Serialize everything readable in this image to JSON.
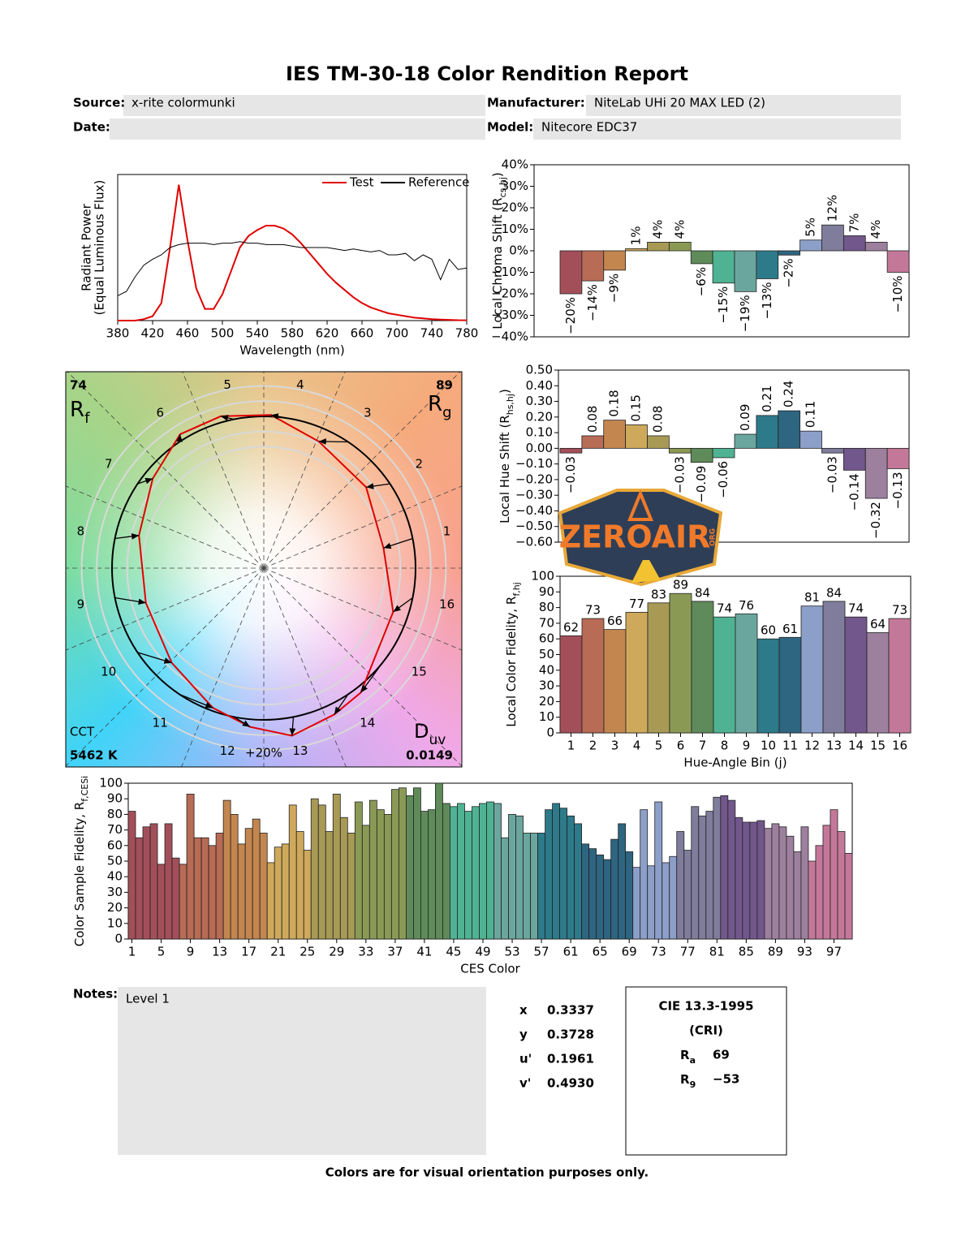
{
  "header": {
    "title": "IES TM-30-18 Color Rendition Report",
    "fields": [
      {
        "label": "Source:",
        "value": "x-rite colormunki"
      },
      {
        "label": "Manufacturer:",
        "value": "NiteLab UHi 20 MAX LED (2)"
      },
      {
        "label": "Date:"
      },
      {
        "label": "Model:",
        "value": "Nitecore EDC37"
      }
    ]
  },
  "chart_data": [
    {
      "type": "line",
      "ylabel": "Radiant Power",
      "ylabel_note": "(Equal Luminous Flux)",
      "xlabel": "Wavelength (nm)",
      "x": [
        380,
        390,
        400,
        410,
        420,
        430,
        440,
        450,
        460,
        470,
        480,
        490,
        500,
        510,
        520,
        530,
        540,
        550,
        560,
        570,
        580,
        590,
        600,
        610,
        620,
        630,
        640,
        650,
        660,
        670,
        680,
        690,
        700,
        710,
        720,
        730,
        740,
        750,
        760,
        770,
        780
      ],
      "xlim": [
        380,
        780
      ],
      "xticks": [
        380,
        420,
        460,
        500,
        540,
        580,
        620,
        660,
        700,
        740,
        780
      ],
      "ylim": [
        0,
        1
      ],
      "legend": "upper right",
      "series": [
        {
          "name": "Test",
          "color": "#e00000",
          "values": [
            0,
            0,
            0,
            0.01,
            0.03,
            0.12,
            0.5,
            0.93,
            0.55,
            0.22,
            0.08,
            0.08,
            0.18,
            0.34,
            0.5,
            0.58,
            0.62,
            0.65,
            0.65,
            0.63,
            0.59,
            0.53,
            0.46,
            0.39,
            0.32,
            0.26,
            0.21,
            0.16,
            0.12,
            0.09,
            0.07,
            0.05,
            0.04,
            0.03,
            0.02,
            0.015,
            0.01,
            0.007,
            0.005,
            0.003,
            0.002
          ]
        },
        {
          "name": "Reference",
          "color": "#000000",
          "values": [
            0.17,
            0.2,
            0.3,
            0.38,
            0.42,
            0.45,
            0.5,
            0.52,
            0.53,
            0.53,
            0.53,
            0.52,
            0.53,
            0.53,
            0.54,
            0.53,
            0.53,
            0.52,
            0.52,
            0.52,
            0.51,
            0.5,
            0.5,
            0.5,
            0.5,
            0.49,
            0.48,
            0.49,
            0.48,
            0.47,
            0.48,
            0.45,
            0.45,
            0.46,
            0.41,
            0.45,
            0.42,
            0.28,
            0.42,
            0.35,
            0.36
          ]
        }
      ]
    },
    {
      "type": "bar",
      "ylabel": [
        "Local Chroma Shift (R",
        "cs,hj",
        ")"
      ],
      "values": [
        -20,
        -14,
        -9,
        1,
        4,
        4,
        -6,
        -15,
        -19,
        -13,
        -2,
        5,
        12,
        7,
        4,
        -10
      ],
      "value_labels": [
        "−20%",
        "−14%",
        "−9%",
        "1%",
        "4%",
        "4%",
        "−6%",
        "−15%",
        "−19%",
        "−13%",
        "−2%",
        "5%",
        "12%",
        "7%",
        "4%",
        "−10%"
      ],
      "ylim": [
        -40,
        40
      ],
      "yticks": [
        {
          "value": -40,
          "label": "−40%"
        },
        {
          "value": -30,
          "label": "−30%"
        },
        {
          "value": -20,
          "label": "−20%"
        },
        {
          "value": -10,
          "label": "−10%"
        },
        {
          "value": 0,
          "label": "0%"
        },
        {
          "value": 10,
          "label": "10%"
        },
        {
          "value": 20,
          "label": "20%"
        },
        {
          "value": 30,
          "label": "30%"
        },
        {
          "value": 40,
          "label": "40%"
        }
      ],
      "colors": [
        "#a34f5a",
        "#b86b55",
        "#c4864f",
        "#cfa95b",
        "#a89a55",
        "#8a9a55",
        "#5f8a5a",
        "#4fb393",
        "#6ba69e",
        "#2d7a8a",
        "#2e6580",
        "#8c9fc9",
        "#7f7c9c",
        "#72578c",
        "#9c809e",
        "#c47899"
      ]
    },
    {
      "type": "bar",
      "ylabel": [
        "Local Hue Shift (R",
        "hs,hj",
        ")"
      ],
      "values": [
        -0.03,
        0.08,
        0.18,
        0.15,
        0.08,
        -0.03,
        -0.09,
        -0.06,
        0.09,
        0.21,
        0.24,
        0.11,
        -0.03,
        -0.14,
        -0.32,
        -0.13
      ],
      "value_labels": [
        "−0.03",
        "0.08",
        "0.18",
        "0.15",
        "0.08",
        "−0.03",
        "−0.09",
        "−0.06",
        "0.09",
        "0.21",
        "0.24",
        "0.11",
        "−0.03",
        "−0.14",
        "−0.32",
        "−0.13"
      ],
      "ylim": [
        -0.6,
        0.5
      ],
      "yticks": [
        {
          "value": -0.6,
          "label": "−0.60"
        },
        {
          "value": -0.5,
          "label": "−0.50"
        },
        {
          "value": -0.4,
          "label": "−0.40"
        },
        {
          "value": -0.3,
          "label": "−0.30"
        },
        {
          "value": -0.2,
          "label": "−0.20"
        },
        {
          "value": -0.1,
          "label": "−0.10"
        },
        {
          "value": 0,
          "label": "0.00"
        },
        {
          "value": 0.1,
          "label": "0.10"
        },
        {
          "value": 0.2,
          "label": "0.20"
        },
        {
          "value": 0.3,
          "label": "0.30"
        },
        {
          "value": 0.4,
          "label": "0.40"
        },
        {
          "value": 0.5,
          "label": "0.50"
        }
      ],
      "colors": [
        "#a34f5a",
        "#b86b55",
        "#c4864f",
        "#cfa95b",
        "#a89a55",
        "#8a9a55",
        "#5f8a5a",
        "#4fb393",
        "#6ba69e",
        "#2d7a8a",
        "#2e6580",
        "#8c9fc9",
        "#7f7c9c",
        "#72578c",
        "#9c809e",
        "#c47899"
      ]
    },
    {
      "type": "bar",
      "ylabel": [
        "Local Color Fidelity, R",
        "f,hj"
      ],
      "xlabel": "Hue-Angle Bin (j)",
      "categories": [
        "1",
        "2",
        "3",
        "4",
        "5",
        "6",
        "7",
        "8",
        "9",
        "10",
        "11",
        "12",
        "13",
        "14",
        "15",
        "16"
      ],
      "values": [
        62,
        73,
        66,
        77,
        83,
        89,
        84,
        74,
        76,
        60,
        61,
        81,
        84,
        74,
        64,
        73
      ],
      "ylim": [
        0,
        100
      ],
      "yticks": [
        0,
        10,
        20,
        30,
        40,
        50,
        60,
        70,
        80,
        90,
        100
      ],
      "colors": [
        "#a34f5a",
        "#b86b55",
        "#c4864f",
        "#cfa95b",
        "#a89a55",
        "#8a9a55",
        "#5f8a5a",
        "#4fb393",
        "#6ba69e",
        "#2d7a8a",
        "#2e6580",
        "#8c9fc9",
        "#7f7c9c",
        "#72578c",
        "#9c809e",
        "#c47899"
      ]
    },
    {
      "type": "bar",
      "ylabel": [
        "Color Sample Fidelity, R",
        "f,CESi"
      ],
      "xlabel": "CES Color",
      "categories": [
        "1",
        null,
        null,
        null,
        "5",
        null,
        null,
        null,
        "9",
        null,
        null,
        null,
        "13",
        null,
        null,
        null,
        "17",
        null,
        null,
        null,
        "21",
        null,
        null,
        null,
        "25",
        null,
        null,
        null,
        "29",
        null,
        null,
        null,
        "33",
        null,
        null,
        null,
        "37",
        null,
        null,
        null,
        "41",
        null,
        null,
        null,
        "45",
        null,
        null,
        null,
        "49",
        null,
        null,
        null,
        "53",
        null,
        null,
        null,
        "57",
        null,
        null,
        null,
        "61",
        null,
        null,
        null,
        "65",
        null,
        null,
        null,
        "69",
        null,
        null,
        null,
        "73",
        null,
        null,
        null,
        "77",
        null,
        null,
        null,
        "81",
        null,
        null,
        null,
        "85",
        null,
        null,
        null,
        "89",
        null,
        null,
        null,
        "93",
        null,
        null,
        null,
        "97",
        null,
        null
      ],
      "values": [
        82,
        65,
        72,
        74,
        48,
        74,
        52,
        48,
        93,
        65,
        65,
        60,
        68,
        89,
        80,
        61,
        71,
        77,
        68,
        49,
        59,
        61,
        86,
        69,
        57,
        90,
        86,
        69,
        93,
        78,
        68,
        88,
        73,
        89,
        83,
        80,
        96,
        97,
        92,
        97,
        82,
        83,
        100,
        87,
        85,
        87,
        82,
        85,
        87,
        88,
        87,
        65,
        80,
        79,
        68,
        68,
        68,
        83,
        87,
        84,
        79,
        74,
        61,
        58,
        54,
        51,
        64,
        74,
        56,
        46,
        83,
        47,
        88,
        49,
        53,
        69,
        57,
        85,
        79,
        82,
        91,
        92,
        89,
        78,
        75,
        75,
        76,
        71,
        74,
        72,
        66,
        56,
        72,
        50,
        60,
        73,
        83,
        69,
        55
      ],
      "ylim": [
        0,
        100
      ],
      "yticks": [
        0,
        10,
        20,
        30,
        40,
        50,
        60,
        70,
        80,
        90,
        100
      ],
      "colors": [
        "#a34f5a",
        "#b86b55",
        "#c4864f",
        "#cfa95b",
        "#a89a55",
        "#8a9a55",
        "#5f8a5a",
        "#4fb393",
        "#6ba69e",
        "#2d7a8a",
        "#2e6580",
        "#8c9fc9",
        "#7f7c9c",
        "#72578c",
        "#9c809e",
        "#c47899"
      ]
    },
    {
      "type": "vector_graphic",
      "rf_value": 74,
      "rf_label": [
        "R",
        "f"
      ],
      "rg_value": 89,
      "rg_label": [
        "R",
        "g"
      ],
      "cct_label": "CCT",
      "cct_value": "5462 K",
      "duv_label": [
        "D",
        "uv"
      ],
      "duv_value": "0.0149",
      "hue_bins": [
        "1",
        "2",
        "3",
        "4",
        "5",
        "6",
        "7",
        "8",
        "9",
        "10",
        "11",
        "12",
        "13",
        "14",
        "15",
        "16"
      ],
      "ring_label": "+20%",
      "test_color": "#e00000",
      "reference_color": "#000000"
    }
  ],
  "notes": {
    "label": "Notes:",
    "text": "Level 1"
  },
  "chromaticity": [
    {
      "label": "x",
      "value": "0.3337"
    },
    {
      "label": "y",
      "value": "0.3728"
    },
    {
      "label": "u'",
      "value": "0.1961"
    },
    {
      "label": "v'",
      "value": "0.4930"
    }
  ],
  "cri": {
    "title": "CIE 13.3-1995",
    "subtitle": "(CRI)",
    "items": [
      {
        "label": [
          "R",
          "a"
        ],
        "value": "69"
      },
      {
        "label": [
          "R",
          "9"
        ],
        "value": "−53"
      }
    ]
  },
  "watermark": {
    "text": "ZEROAIR",
    "tag": "ORG"
  },
  "footer": "Colors are for visual orientation purposes only."
}
